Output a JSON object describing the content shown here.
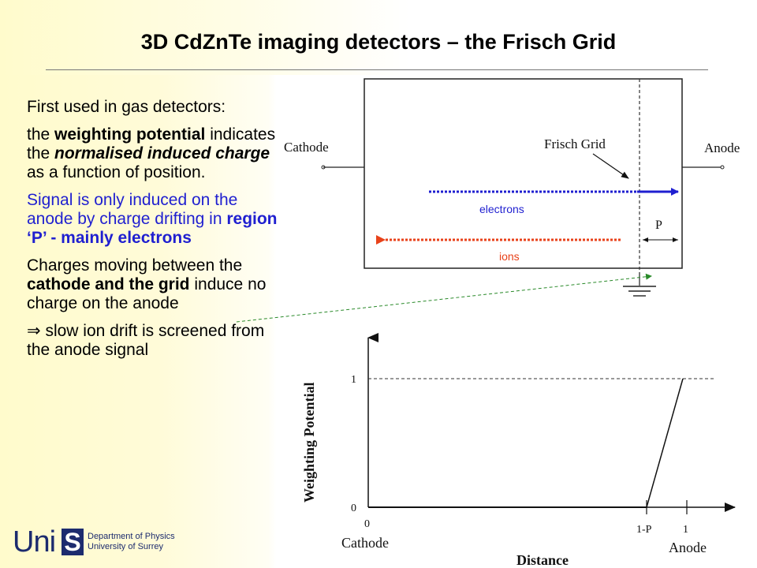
{
  "slide": {
    "title": "3D CdZnTe imaging detectors – the Frisch Grid"
  },
  "text": {
    "p1": "First used in gas detectors:",
    "p2": {
      "a": "the ",
      "b": "weighting potential",
      "c": " indicates the ",
      "d": "normalised induced charge",
      "e": " as a function of position."
    },
    "p3": {
      "a": "Signal is only induced on the anode by charge drifting in ",
      "b": "region ‘P’ - mainly electrons"
    },
    "p4": {
      "a": "Charges moving between the ",
      "b": "cathode and the grid",
      "c": " induce no charge on the anode"
    },
    "p5": {
      "symbol": "⇒",
      "text": " slow ion drift is screened from the anode signal"
    }
  },
  "detector": {
    "cathode_label": "Cathode",
    "anode_label": "Anode",
    "grid_label": "Frisch Grid",
    "region_label": "P",
    "electrons_label": "electrons",
    "ions_label": "ions",
    "colors": {
      "electrons": "#1f1fd0",
      "ions": "#e8421a",
      "link": "#2a8a2a"
    }
  },
  "graph": {
    "ylabel": "Weighting Potential",
    "xlabel": "Distance",
    "y_tick_1": "1",
    "y_tick_0": "0",
    "x_tick_0": "0",
    "x_tick_1p": "1-P",
    "x_tick_1": "1",
    "x_left_label": "Cathode",
    "x_right_label": "Anode"
  },
  "logo": {
    "uni": "Uni",
    "s": "S",
    "dept_line1": "Department of Physics",
    "dept_line2": "University of Surrey"
  }
}
